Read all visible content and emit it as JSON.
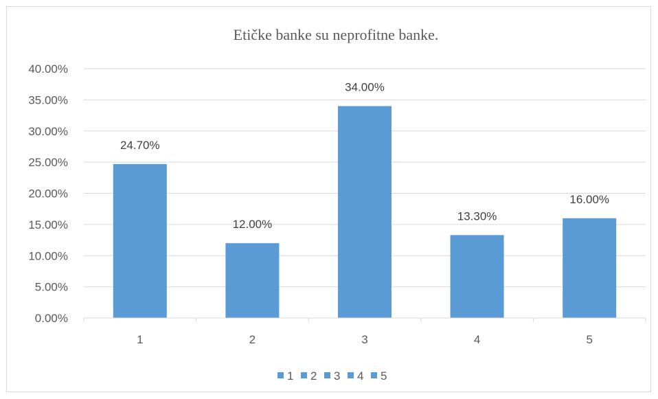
{
  "chart_data": {
    "type": "bar",
    "title": "Etičke banke su neprofitne banke.",
    "categories": [
      "1",
      "2",
      "3",
      "4",
      "5"
    ],
    "values": [
      24.7,
      12.0,
      34.0,
      13.3,
      16.0
    ],
    "value_labels": [
      "24.70%",
      "12.00%",
      "34.00%",
      "13.30%",
      "16.00%"
    ],
    "ylim": [
      0,
      40
    ],
    "yticks": [
      0,
      5,
      10,
      15,
      20,
      25,
      30,
      35,
      40
    ],
    "ytick_labels": [
      "0.00%",
      "5.00%",
      "10.00%",
      "15.00%",
      "20.00%",
      "25.00%",
      "30.00%",
      "35.00%",
      "40.00%"
    ],
    "legend": [
      "1",
      "2",
      "3",
      "4",
      "5"
    ],
    "legend_position": "bottom",
    "grid": true,
    "bar_color": "#5b9bd5",
    "grid_color": "#d9d9d9",
    "xlabel": "",
    "ylabel": ""
  }
}
